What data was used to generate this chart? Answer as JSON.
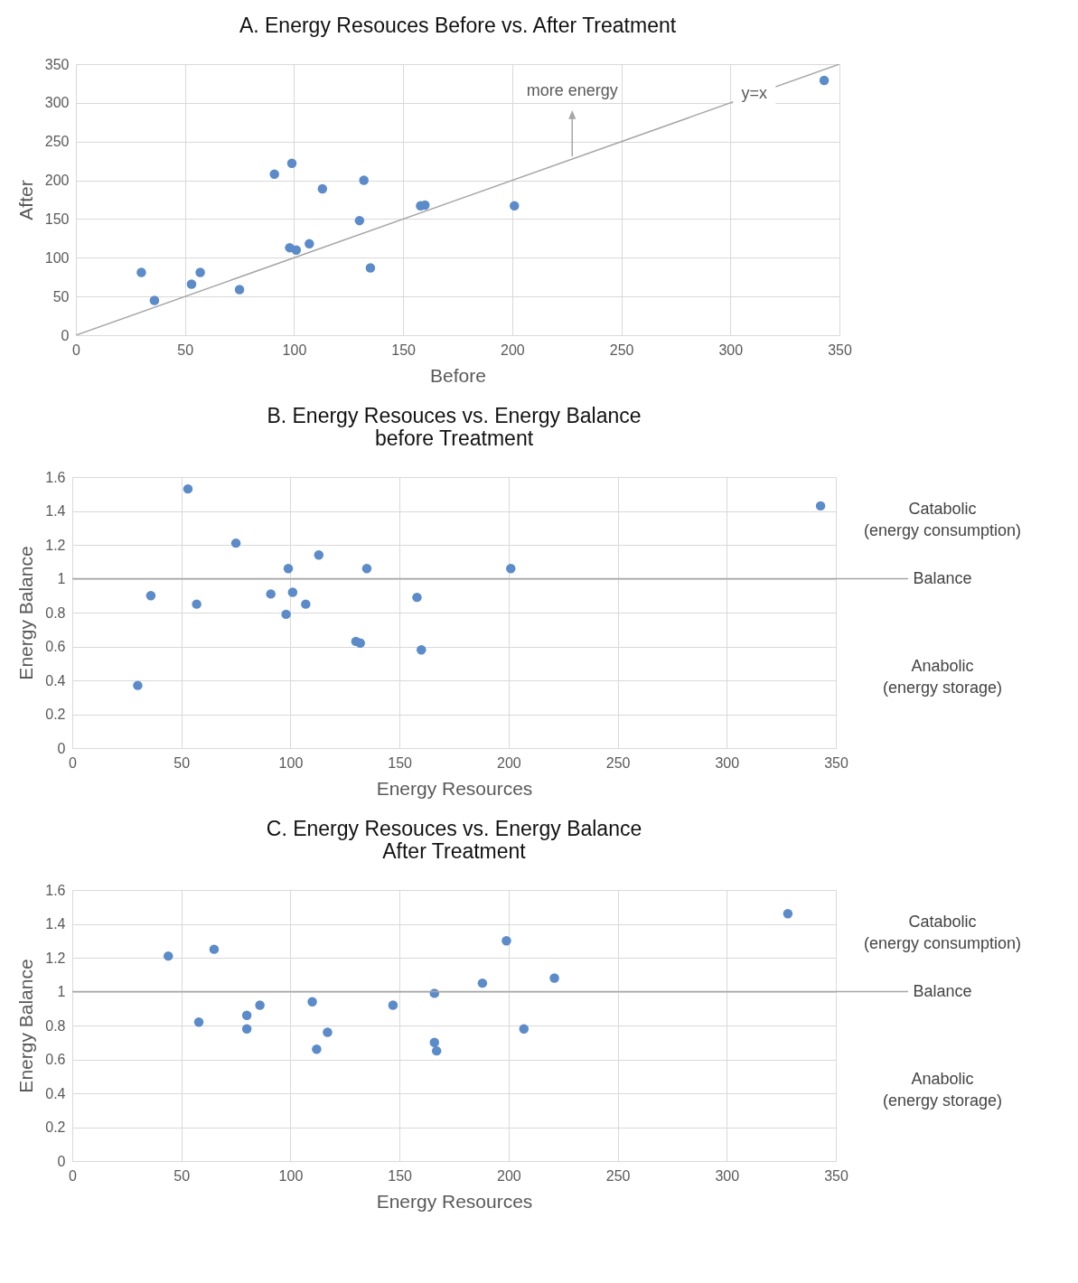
{
  "chart_data": [
    {
      "type": "scatter",
      "title": "A.  Energy Resouces Before vs. After Treatment",
      "xlabel": "Before",
      "ylabel": "After",
      "xlim": [
        0,
        350
      ],
      "ylim": [
        0,
        350
      ],
      "xticks": [
        0,
        50,
        100,
        150,
        200,
        250,
        300,
        350
      ],
      "yticks": [
        0,
        50,
        100,
        150,
        200,
        250,
        300,
        350
      ],
      "grid": true,
      "series": [
        {
          "color": "#5b8bc9",
          "x": [
            30,
            36,
            53,
            57,
            75,
            91,
            99,
            98,
            101,
            107,
            113,
            130,
            132,
            135,
            158,
            160,
            201,
            343
          ],
          "values": [
            81,
            45,
            66,
            81,
            59,
            208,
            222,
            113,
            110,
            118,
            189,
            148,
            200,
            87,
            167,
            168,
            167,
            329
          ]
        },
        {
          "type": "line",
          "color": "#a6a6a6",
          "x": [
            0,
            350
          ],
          "values": [
            0,
            350
          ]
        }
      ],
      "annotations": [
        "more energy",
        {
          "text": "y=x",
          "x": 311,
          "y": 311
        }
      ]
    },
    {
      "type": "scatter",
      "title": "B.  Energy Resouces vs. Energy Balance\nbefore Treatment",
      "xlabel": "Energy Resources",
      "ylabel": "Energy Balance",
      "xlim": [
        0,
        350
      ],
      "ylim": [
        0,
        1.6
      ],
      "xticks": [
        0,
        50,
        100,
        150,
        200,
        250,
        300,
        350
      ],
      "yticks": [
        0,
        0.2,
        0.4,
        0.6,
        0.8,
        1,
        1.2,
        1.4,
        1.6
      ],
      "grid": true,
      "series": [
        {
          "color": "#5b8bc9",
          "x": [
            30,
            36,
            53,
            57,
            75,
            91,
            98,
            99,
            101,
            107,
            113,
            130,
            132,
            135,
            158,
            160,
            201,
            343
          ],
          "values": [
            0.37,
            0.9,
            1.53,
            0.85,
            1.21,
            0.91,
            0.79,
            1.06,
            0.92,
            0.85,
            1.14,
            0.63,
            0.62,
            1.06,
            0.89,
            0.58,
            1.06,
            1.43
          ]
        }
      ],
      "ref_lines": [
        {
          "axis": "y",
          "value": 1,
          "label": "Balance",
          "color": "#a6a6a6"
        }
      ],
      "annotations": [
        "Catabolic\n(energy consumption)",
        "Anabolic\n(energy storage)"
      ]
    },
    {
      "type": "scatter",
      "title": "C.  Energy Resouces vs. Energy Balance\nAfter Treatment",
      "xlabel": "Energy Resources",
      "ylabel": "Energy Balance",
      "xlim": [
        0,
        350
      ],
      "ylim": [
        0,
        1.6
      ],
      "xticks": [
        0,
        50,
        100,
        150,
        200,
        250,
        300,
        350
      ],
      "yticks": [
        0,
        0.2,
        0.4,
        0.6,
        0.8,
        1,
        1.2,
        1.4,
        1.6
      ],
      "grid": true,
      "series": [
        {
          "color": "#5b8bc9",
          "x": [
            44,
            58,
            65,
            80,
            80,
            86,
            110,
            112,
            117,
            147,
            166,
            166,
            167,
            188,
            199,
            207,
            221,
            328
          ],
          "values": [
            1.21,
            0.82,
            1.25,
            0.86,
            0.78,
            0.92,
            0.94,
            0.66,
            0.76,
            0.92,
            0.99,
            0.7,
            0.65,
            1.05,
            1.3,
            0.78,
            1.08,
            1.46
          ]
        }
      ],
      "ref_lines": [
        {
          "axis": "y",
          "value": 1,
          "label": "Balance",
          "color": "#a6a6a6"
        }
      ],
      "annotations": [
        "Catabolic\n(energy consumption)",
        "Anabolic\n(energy storage)"
      ]
    }
  ]
}
